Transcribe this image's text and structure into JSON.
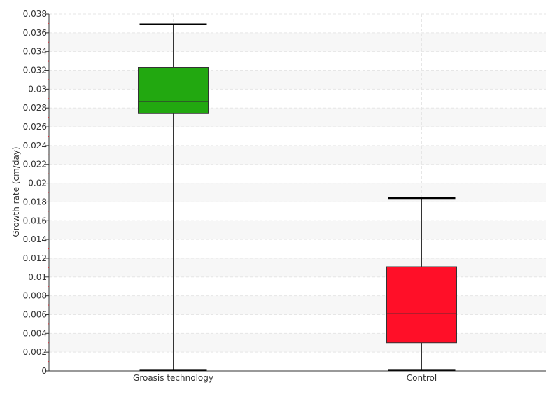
{
  "chart_data": {
    "type": "box",
    "xlabel": "",
    "ylabel": "Growth rate (cm/day)",
    "ylim": [
      0,
      0.038
    ],
    "yticks": [
      0,
      0.002,
      0.004,
      0.006,
      0.008,
      0.01,
      0.012,
      0.014,
      0.016,
      0.018,
      0.02,
      0.022,
      0.024,
      0.026,
      0.028,
      0.03,
      0.032,
      0.034,
      0.036,
      0.038
    ],
    "ytick_labels": [
      "0",
      "0.002",
      "0.004",
      "0.006",
      "0.008",
      "0.01",
      "0.012",
      "0.014",
      "0.016",
      "0.018",
      "0.02",
      "0.022",
      "0.024",
      "0.026",
      "0.028",
      "0.03",
      "0.032",
      "0.034",
      "0.036",
      "0.038"
    ],
    "grid": true,
    "categories": [
      "Groasis technology",
      "Control"
    ],
    "boxes": [
      {
        "category": "Groasis technology",
        "min": 0.0001,
        "q1": 0.0274,
        "median": 0.0287,
        "q3": 0.0323,
        "max": 0.0369,
        "color": "#22a810"
      },
      {
        "category": "Control",
        "min": 0.0001,
        "q1": 0.003,
        "median": 0.0061,
        "q3": 0.0111,
        "max": 0.0184,
        "color": "#ff0f28"
      }
    ]
  }
}
